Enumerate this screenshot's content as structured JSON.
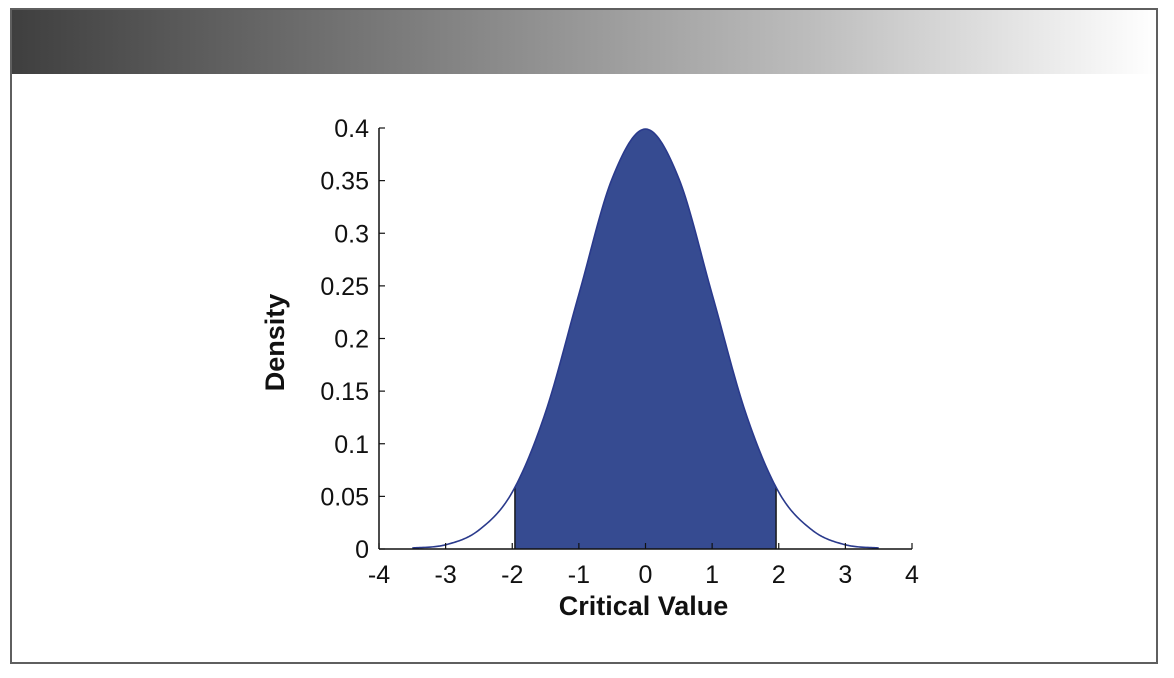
{
  "chart_data": {
    "type": "area",
    "xlabel": "Critical Value",
    "ylabel": "Density",
    "xlim": [
      -4,
      4
    ],
    "ylim": [
      0,
      0.4
    ],
    "x_ticks": [
      -4,
      -3,
      -2,
      -1,
      0,
      1,
      2,
      3,
      4
    ],
    "y_ticks": [
      0,
      0.05,
      0.1,
      0.15,
      0.2,
      0.25,
      0.3,
      0.35,
      0.4
    ],
    "x_tick_labels": [
      "-4",
      "-3",
      "-2",
      "-1",
      "0",
      "1",
      "2",
      "3",
      "4"
    ],
    "y_tick_labels": [
      "0",
      "0.05",
      "0.1",
      "0.15",
      "0.2",
      "0.25",
      "0.3",
      "0.35",
      "0.4"
    ],
    "series": [
      {
        "x": [
          -3.5,
          -3,
          -2.5,
          -2,
          -1.5,
          -1,
          -0.5,
          0,
          0.5,
          1,
          1.5,
          2,
          2.5,
          3,
          3.5
        ],
        "y": [
          0.001,
          0.004,
          0.018,
          0.054,
          0.13,
          0.242,
          0.352,
          0.399,
          0.352,
          0.242,
          0.13,
          0.054,
          0.018,
          0.004,
          0.001
        ]
      }
    ],
    "shaded_region": {
      "x_from": -1.96,
      "x_to": 1.96
    },
    "grid": false,
    "legend": "none",
    "colors": {
      "fill": "#364b91",
      "curve": "#2a3a8c",
      "axis": "#111111"
    }
  }
}
